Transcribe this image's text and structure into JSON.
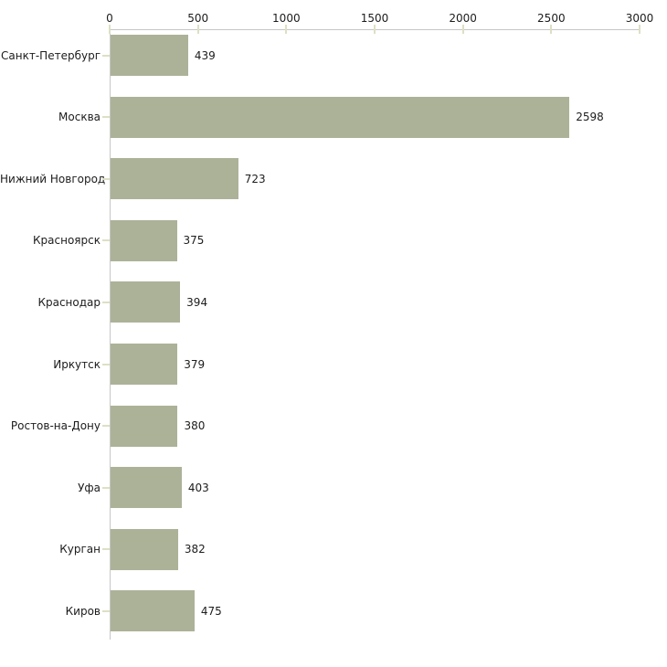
{
  "chart_data": {
    "type": "bar",
    "orientation": "horizontal",
    "title": "",
    "xlabel": "",
    "ylabel": "",
    "categories": [
      "Санкт-Петербург",
      "Москва",
      "Нижний Новгород",
      "Красноярск",
      "Краснодар",
      "Иркутск",
      "Ростов-на-Дону",
      "Уфа",
      "Курган",
      "Киров"
    ],
    "values": [
      439,
      2598,
      723,
      375,
      394,
      379,
      380,
      403,
      382,
      475
    ],
    "value_labels": [
      "439",
      "2598",
      "723",
      "375",
      "394",
      "379",
      "380",
      "403",
      "382",
      "475"
    ],
    "xlim": [
      0,
      3000
    ],
    "xticks": [
      0,
      500,
      1000,
      1500,
      2000,
      2500,
      3000
    ],
    "xtick_labels": [
      "0",
      "500",
      "1000",
      "1500",
      "2000",
      "2500",
      "3000"
    ],
    "grid": false,
    "legend": null,
    "colors": {
      "bar_fill": "#acb298",
      "axis_line": "#c6c6c6",
      "tick_mark": "#dde0c3",
      "text": "#1c1c1c",
      "background": "#ffffff"
    }
  }
}
